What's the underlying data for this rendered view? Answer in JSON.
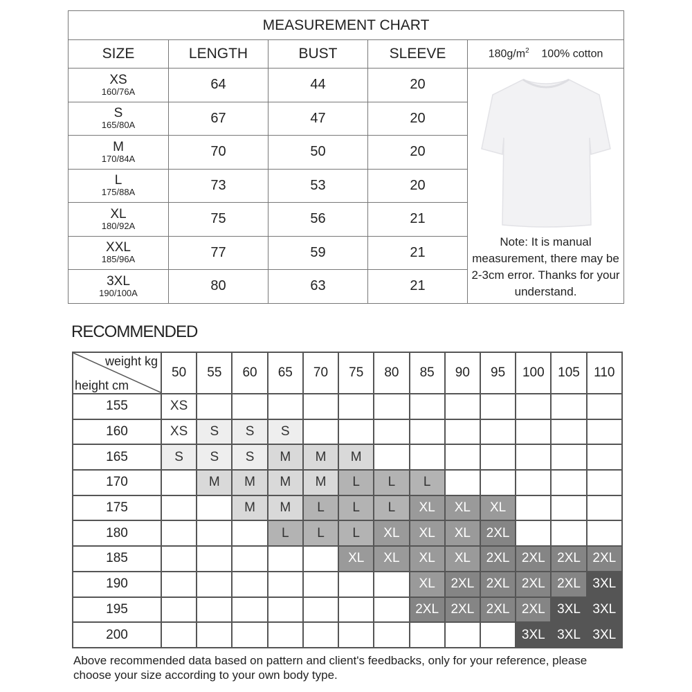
{
  "measurement": {
    "title": "MEASUREMENT CHART",
    "headers": [
      "SIZE",
      "LENGTH",
      "BUST",
      "SLEEVE"
    ],
    "fabric_weight": "180g/m",
    "fabric_weight_sup": "2",
    "material": "100% cotton",
    "rows": [
      {
        "size": "XS",
        "code": "160/76A",
        "length": "64",
        "bust": "44",
        "sleeve": "20"
      },
      {
        "size": "S",
        "code": "165/80A",
        "length": "67",
        "bust": "47",
        "sleeve": "20"
      },
      {
        "size": "M",
        "code": "170/84A",
        "length": "70",
        "bust": "50",
        "sleeve": "20"
      },
      {
        "size": "L",
        "code": "175/88A",
        "length": "73",
        "bust": "53",
        "sleeve": "20"
      },
      {
        "size": "XL",
        "code": "180/92A",
        "length": "75",
        "bust": "56",
        "sleeve": "21"
      },
      {
        "size": "XXL",
        "code": "185/96A",
        "length": "77",
        "bust": "59",
        "sleeve": "21"
      },
      {
        "size": "3XL",
        "code": "190/100A",
        "length": "80",
        "bust": "63",
        "sleeve": "21"
      }
    ],
    "note": "Note: It is manual measurement, there may be 2-3cm error. Thanks for your understand."
  },
  "recommended": {
    "title": "RECOMMENDED",
    "weight_label": "weight kg",
    "height_label": "height cm",
    "weights": [
      "50",
      "55",
      "60",
      "65",
      "70",
      "75",
      "80",
      "85",
      "90",
      "95",
      "100",
      "105",
      "110"
    ],
    "rows": [
      {
        "height": "155",
        "cells": [
          "XS",
          "",
          "",
          "",
          "",
          "",
          "",
          "",
          "",
          "",
          "",
          "",
          ""
        ]
      },
      {
        "height": "160",
        "cells": [
          "XS",
          "S",
          "S",
          "S",
          "",
          "",
          "",
          "",
          "",
          "",
          "",
          "",
          ""
        ]
      },
      {
        "height": "165",
        "cells": [
          "S",
          "S",
          "S",
          "M",
          "M",
          "M",
          "",
          "",
          "",
          "",
          "",
          "",
          ""
        ]
      },
      {
        "height": "170",
        "cells": [
          "",
          "M",
          "M",
          "M",
          "M",
          "L",
          "L",
          "L",
          "",
          "",
          "",
          "",
          ""
        ]
      },
      {
        "height": "175",
        "cells": [
          "",
          "",
          "M",
          "M",
          "L",
          "L",
          "L",
          "XL",
          "XL",
          "XL",
          "",
          "",
          ""
        ]
      },
      {
        "height": "180",
        "cells": [
          "",
          "",
          "",
          "L",
          "L",
          "L",
          "XL",
          "XL",
          "XL",
          "2XL",
          "",
          "",
          ""
        ]
      },
      {
        "height": "185",
        "cells": [
          "",
          "",
          "",
          "",
          "",
          "XL",
          "XL",
          "XL",
          "XL",
          "2XL",
          "2XL",
          "2XL",
          "2XL"
        ]
      },
      {
        "height": "190",
        "cells": [
          "",
          "",
          "",
          "",
          "",
          "",
          "",
          "XL",
          "2XL",
          "2XL",
          "2XL",
          "2XL",
          "3XL"
        ]
      },
      {
        "height": "195",
        "cells": [
          "",
          "",
          "",
          "",
          "",
          "",
          "",
          "2XL",
          "2XL",
          "2XL",
          "2XL",
          "3XL",
          "3XL"
        ]
      },
      {
        "height": "200",
        "cells": [
          "",
          "",
          "",
          "",
          "",
          "",
          "",
          "",
          "",
          "",
          "3XL",
          "3XL",
          "3XL"
        ]
      }
    ],
    "size_colors": {
      "XS": "#ffffff",
      "S": "#eeeeee",
      "M": "#d9d9d9",
      "L": "#b3b3b3",
      "XL": "#9a9a9a",
      "2XL": "#858585",
      "3XL": "#555555"
    },
    "footnote": "Above recommended data based on pattern and client's feedbacks, only for your reference, please choose your size according to your own body type."
  }
}
